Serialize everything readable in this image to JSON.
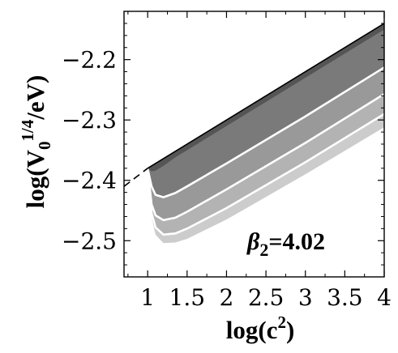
{
  "chart_data": {
    "type": "area",
    "title": "",
    "xlabel": "log(c^2)",
    "xlabel_parts": {
      "base": "log(c",
      "sup": "2",
      "close": ")"
    },
    "ylabel": "log(V0^1/4/eV)",
    "ylabel_parts": {
      "pre": "log(V",
      "sub": "0",
      "sup": "1/4",
      "post": "/eV)"
    },
    "xlim": [
      0.7,
      4.0
    ],
    "ylim": [
      -2.56,
      -2.12
    ],
    "xticks": [
      1,
      1.5,
      2,
      2.5,
      3,
      3.5,
      4
    ],
    "xtick_labels": [
      "1",
      "1.5",
      "2",
      "2.5",
      "3",
      "3.5",
      "4"
    ],
    "yticks": [
      -2.5,
      -2.4,
      -2.3,
      -2.2
    ],
    "ytick_labels": [
      "−2.5",
      "−2.4",
      "−2.3",
      "−2.2"
    ],
    "grid": false,
    "annotation": {
      "symbol": "β",
      "subscript": "2",
      "text": "=4.02"
    },
    "upper_boundary": {
      "name": "",
      "style": "dashed below x≈1, solid above",
      "points": [
        [
          0.7,
          -2.41
        ],
        [
          1.0,
          -2.38
        ],
        [
          4.0,
          -2.14
        ]
      ]
    },
    "bands": [
      {
        "name": "",
        "color": "#555555",
        "lower": [
          [
            1.0,
            -2.381
          ],
          [
            1.05,
            -2.385
          ],
          [
            1.1,
            -2.384
          ],
          [
            1.2,
            -2.376
          ],
          [
            1.35,
            -2.362
          ],
          [
            1.5,
            -2.35
          ],
          [
            2.0,
            -2.31
          ],
          [
            3.0,
            -2.23
          ],
          [
            4.0,
            -2.15
          ]
        ]
      },
      {
        "name": "",
        "color": "#7a7a7a",
        "lower": [
          [
            1.0,
            -2.381
          ],
          [
            1.05,
            -2.41
          ],
          [
            1.1,
            -2.424
          ],
          [
            1.2,
            -2.428
          ],
          [
            1.35,
            -2.421
          ],
          [
            1.5,
            -2.41
          ],
          [
            2.0,
            -2.372
          ],
          [
            3.0,
            -2.294
          ],
          [
            4.0,
            -2.213
          ]
        ]
      },
      {
        "name": "",
        "color": "#999999",
        "lower": [
          [
            1.0,
            -2.381
          ],
          [
            1.05,
            -2.44
          ],
          [
            1.1,
            -2.458
          ],
          [
            1.2,
            -2.466
          ],
          [
            1.35,
            -2.462
          ],
          [
            1.5,
            -2.452
          ],
          [
            2.0,
            -2.415
          ],
          [
            3.0,
            -2.338
          ],
          [
            4.0,
            -2.257
          ]
        ]
      },
      {
        "name": "",
        "color": "#b3b3b3",
        "lower": [
          [
            1.0,
            -2.381
          ],
          [
            1.05,
            -2.455
          ],
          [
            1.1,
            -2.478
          ],
          [
            1.2,
            -2.49
          ],
          [
            1.35,
            -2.488
          ],
          [
            1.5,
            -2.48
          ],
          [
            2.0,
            -2.446
          ],
          [
            3.0,
            -2.37
          ],
          [
            4.0,
            -2.29
          ]
        ]
      },
      {
        "name": "",
        "color": "#cccccc",
        "lower": [
          [
            1.0,
            -2.381
          ],
          [
            1.05,
            -2.462
          ],
          [
            1.1,
            -2.49
          ],
          [
            1.2,
            -2.504
          ],
          [
            1.35,
            -2.503
          ],
          [
            1.5,
            -2.497
          ],
          [
            2.0,
            -2.465
          ],
          [
            3.0,
            -2.39
          ],
          [
            4.0,
            -2.312
          ]
        ]
      }
    ],
    "white_contours": [
      {
        "name": "",
        "points": [
          [
            1.0,
            -2.381
          ],
          [
            1.05,
            -2.41
          ],
          [
            1.1,
            -2.424
          ],
          [
            1.2,
            -2.428
          ],
          [
            1.35,
            -2.421
          ],
          [
            1.5,
            -2.41
          ],
          [
            2.0,
            -2.372
          ],
          [
            3.0,
            -2.294
          ],
          [
            4.0,
            -2.213
          ]
        ]
      },
      {
        "name": "",
        "points": [
          [
            1.0,
            -2.381
          ],
          [
            1.05,
            -2.44
          ],
          [
            1.1,
            -2.458
          ],
          [
            1.2,
            -2.466
          ],
          [
            1.35,
            -2.462
          ],
          [
            1.5,
            -2.452
          ],
          [
            2.0,
            -2.415
          ],
          [
            3.0,
            -2.338
          ],
          [
            4.0,
            -2.257
          ]
        ]
      },
      {
        "name": "",
        "points": [
          [
            1.0,
            -2.381
          ],
          [
            1.05,
            -2.455
          ],
          [
            1.1,
            -2.478
          ],
          [
            1.2,
            -2.49
          ],
          [
            1.35,
            -2.488
          ],
          [
            1.5,
            -2.48
          ],
          [
            2.0,
            -2.446
          ],
          [
            3.0,
            -2.37
          ],
          [
            4.0,
            -2.29
          ]
        ]
      }
    ]
  }
}
